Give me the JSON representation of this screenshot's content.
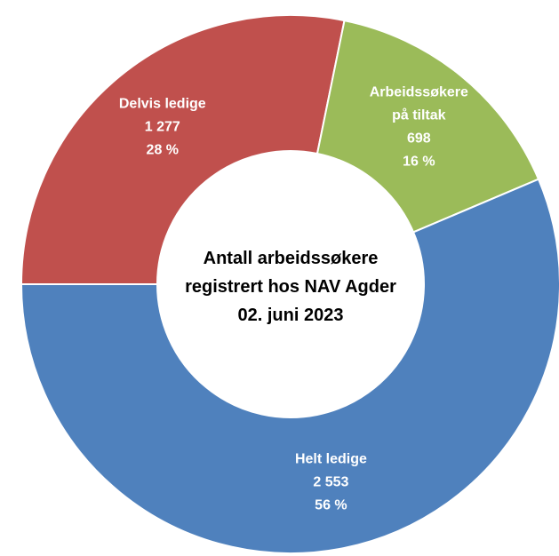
{
  "chart_data": {
    "type": "donut",
    "title": "Antall arbeidssøkere\nregistrert hos NAV Agder\n02. juni 2023",
    "categories": [
      "Delvis ledige",
      "Arbeidssøkere\npå tiltak",
      "Helt ledige"
    ],
    "values": [
      1277,
      698,
      2553
    ],
    "value_labels": [
      "1 277",
      "698",
      "2 553"
    ],
    "percents": [
      28,
      16,
      56
    ],
    "percent_labels": [
      "28 %",
      "16 %",
      "56 %"
    ],
    "colors": [
      "#c0504d",
      "#9bbb59",
      "#4f81bd"
    ]
  }
}
